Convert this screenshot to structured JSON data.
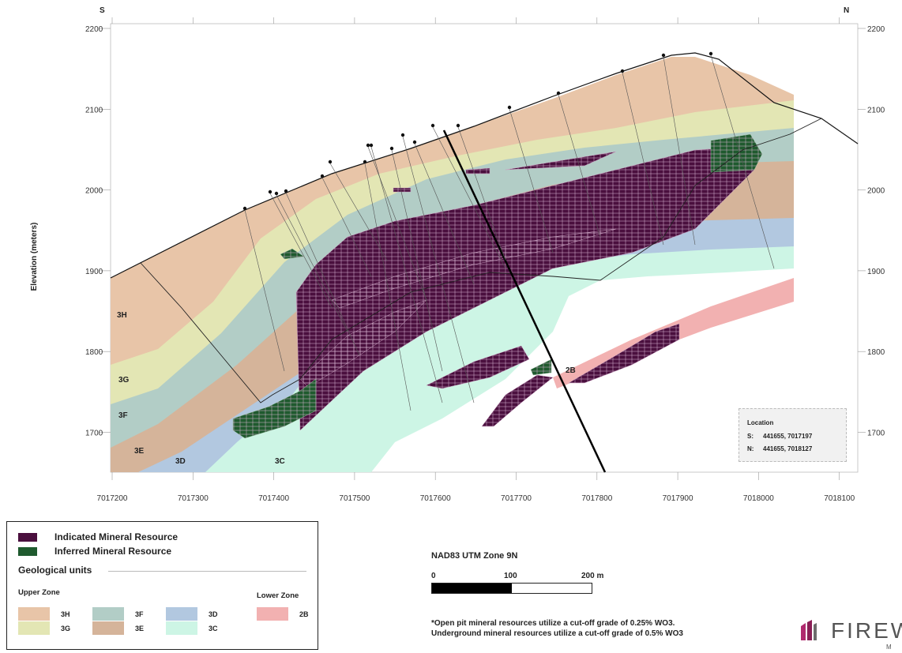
{
  "compass": {
    "south": "S",
    "north": "N"
  },
  "axes": {
    "y_label": "Elevation (meters)",
    "y_ticks": [
      "2200",
      "2100",
      "2000",
      "1900",
      "1800",
      "1700"
    ],
    "x_ticks": [
      "7017200",
      "7017300",
      "7017400",
      "7017500",
      "7017600",
      "7017700",
      "7017800",
      "7017900",
      "7018000",
      "7018100"
    ]
  },
  "unit_labels": [
    "3H",
    "3G",
    "3F",
    "3E",
    "3D",
    "3C",
    "2B"
  ],
  "location": {
    "title": "Location",
    "s_label": "S:",
    "s_value": "441655, 7017197",
    "n_label": "N:",
    "n_value": "441655, 7018127"
  },
  "legend": {
    "indicated": "Indicated Mineral Resource",
    "inferred": "Inferred Mineral Resource",
    "geo_title": "Geological units",
    "upper_zone": "Upper Zone",
    "lower_zone": "Lower Zone",
    "units": [
      "3H",
      "3G",
      "3F",
      "3E",
      "3D",
      "3C",
      "2B"
    ]
  },
  "scale": {
    "crs": "NAD83 UTM Zone 9N",
    "t0": "0",
    "t1": "100",
    "t2": "200 m"
  },
  "note": "*Open pit mineral resources utilize a cut-off grade of 0.25% WO3. Underground mineral resources utilize a cut-off grade of 0.5% WO3",
  "logo_text": "FIREW",
  "logo_sub": "M",
  "colors": {
    "3H": "#e8c5a8",
    "3G": "#e3e6b4",
    "3F": "#b2cdc6",
    "3E": "#d5b49a",
    "3D": "#b2c8e0",
    "3C": "#cdf5e5",
    "2B": "#f2b1b1",
    "indicated": "#4a0f3e",
    "inferred": "#1f5a2e"
  }
}
